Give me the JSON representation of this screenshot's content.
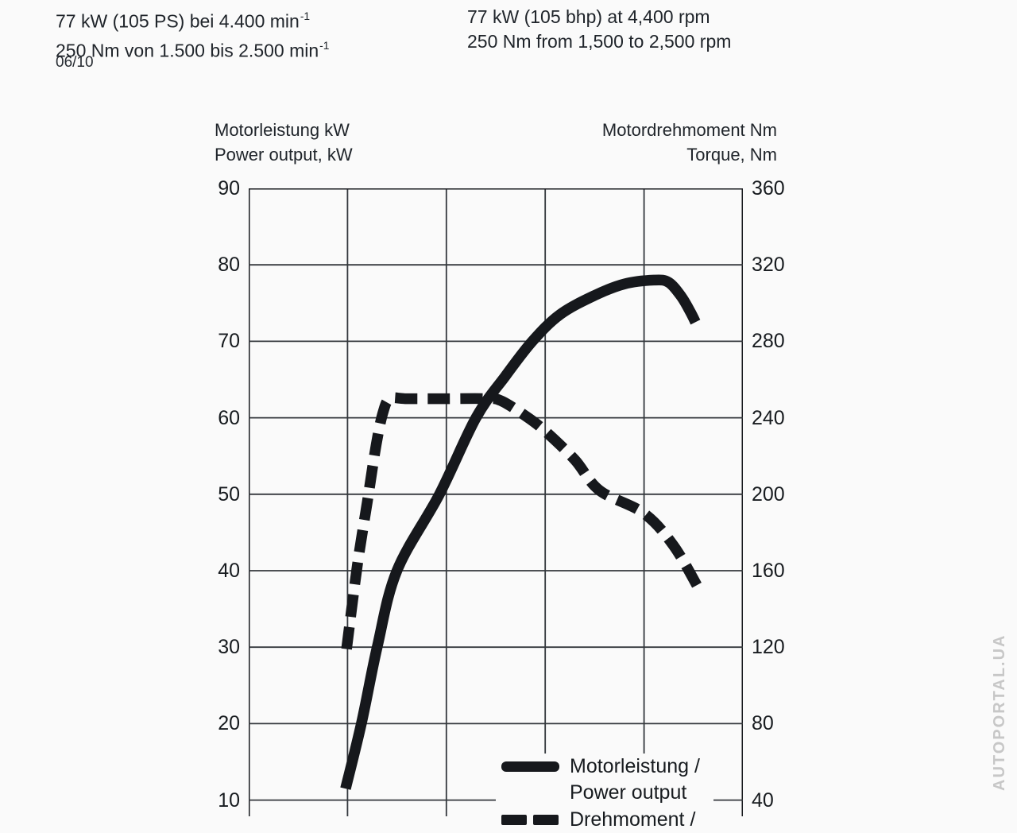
{
  "header_de": {
    "line1_base": "77 kW (105 PS) bei 4.400 min",
    "line1_sup": "-1",
    "line2_base": "250 Nm von 1.500 bis 2.500 min",
    "line2_sup": "-1"
  },
  "header_en": {
    "line1": "77 kW (105 bhp) at 4,400 rpm",
    "line2": "250 Nm from 1,500 to 2,500 rpm"
  },
  "date_code": "06/10",
  "left_axis_title": {
    "line1": "Motorleistung kW",
    "line2": "Power output, kW"
  },
  "right_axis_title": {
    "line1": "Motordrehmoment Nm",
    "line2": "Torque, Nm"
  },
  "legend": {
    "items": [
      {
        "swatch": "solid-line",
        "line1": "Motorleistung /",
        "line2": "Power output"
      },
      {
        "swatch": "dashed-line",
        "line1": "Drehmoment /",
        "line2": ""
      }
    ]
  },
  "watermark": "AUTOPORTAL.UA",
  "colors": {
    "curve": "#16181c",
    "grid": "#34383d",
    "border": "#17191d",
    "text": "#20252b",
    "watermark": "#c7c7c7",
    "background": "#fafafa"
  },
  "chart_data": {
    "type": "line",
    "title": "",
    "x_axis": {
      "unit": "rpm",
      "range": [
        0,
        5000
      ],
      "gridline_step": 1000,
      "tick_labels_visible": false
    },
    "y_left": {
      "label": "Motorleistung kW / Power output, kW",
      "unit": "kW",
      "ticks": [
        90,
        80,
        70,
        60,
        50,
        40,
        30,
        20,
        10
      ],
      "gridline_step": 10
    },
    "y_right": {
      "label": "Motordrehmoment Nm / Torque, Nm",
      "unit": "Nm",
      "ticks": [
        360,
        320,
        280,
        240,
        200,
        160,
        120,
        80,
        40
      ],
      "gridline_step": 40
    },
    "grid": true,
    "legend_position": "bottom-inside",
    "series": [
      {
        "name": "Motorleistung / Power output",
        "style": "solid",
        "axis": "left",
        "points": [
          [
            980,
            11.5
          ],
          [
            1140,
            20
          ],
          [
            1300,
            30
          ],
          [
            1500,
            40
          ],
          [
            1930,
            50
          ],
          [
            2300,
            60
          ],
          [
            2600,
            65.5
          ],
          [
            2870,
            70
          ],
          [
            3150,
            73.5
          ],
          [
            3500,
            76
          ],
          [
            3800,
            77.5
          ],
          [
            4100,
            78
          ],
          [
            4250,
            77.7
          ],
          [
            4380,
            75.8
          ],
          [
            4470,
            73.8
          ],
          [
            4520,
            72.5
          ]
        ]
      },
      {
        "name": "Drehmoment / Torque",
        "style": "dashed",
        "axis": "right",
        "points": [
          [
            990,
            119
          ],
          [
            1100,
            163
          ],
          [
            1200,
            196
          ],
          [
            1290,
            226
          ],
          [
            1360,
            243
          ],
          [
            1430,
            250
          ],
          [
            1600,
            250
          ],
          [
            2000,
            250
          ],
          [
            2400,
            250
          ],
          [
            2550,
            249
          ],
          [
            2800,
            241
          ],
          [
            3000,
            233
          ],
          [
            3300,
            218
          ],
          [
            3550,
            202
          ],
          [
            4000,
            190
          ],
          [
            4300,
            173
          ],
          [
            4560,
            150
          ]
        ]
      }
    ]
  }
}
